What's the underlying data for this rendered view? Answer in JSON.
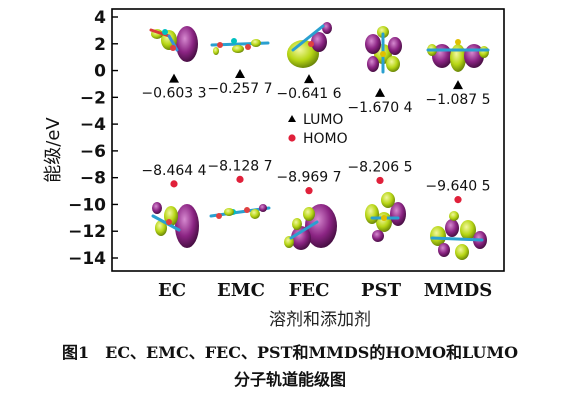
{
  "chart_data": {
    "type": "scatter",
    "title": "",
    "xlabel": "溶剂和添加剂",
    "ylabel": "能级/eV",
    "ylim": [
      -15,
      4.6
    ],
    "yticks": [
      4,
      2,
      0,
      -2,
      -4,
      -6,
      -8,
      -10,
      -12,
      -14
    ],
    "categories": [
      "EC",
      "EMC",
      "FEC",
      "PST",
      "MMDS"
    ],
    "series": [
      {
        "name": "LUMO",
        "marker": "triangle",
        "color": "#000000",
        "values": [
          -0.6033,
          -0.2577,
          -0.6416,
          -1.6704,
          -1.0875
        ],
        "labels": [
          "−0.603 3",
          "−0.257 7",
          "−0.641 6",
          "−1.670 4",
          "−1.087 5"
        ]
      },
      {
        "name": "HOMO",
        "marker": "circle",
        "color": "#e0203a",
        "values": [
          -8.4644,
          -8.1287,
          -8.9697,
          -8.2065,
          -9.6405
        ],
        "labels": [
          "−8.464 4",
          "−8.128 7",
          "−8.969 7",
          "−8.206 5",
          "−9.640 5"
        ]
      }
    ],
    "legend": {
      "position": "center",
      "entries": [
        "LUMO",
        "HOMO"
      ]
    }
  },
  "caption": {
    "line1": "图1 EC、EMC、FEC、PST和MMDS的HOMO和LUMO",
    "line2": "分子轨道能级图"
  },
  "colors": {
    "lumo": "#000000",
    "homo": "#e0203a",
    "plot_bg": "#ffffff",
    "orbital_green": "#b7d615",
    "orbital_purple": "#7a1f74"
  },
  "icons": [
    "orbital-ec-lumo",
    "orbital-emc-lumo",
    "orbital-fec-lumo",
    "orbital-pst-lumo",
    "orbital-mmds-lumo",
    "orbital-ec-homo",
    "orbital-emc-homo",
    "orbital-fec-homo",
    "orbital-pst-homo",
    "orbital-mmds-homo"
  ]
}
